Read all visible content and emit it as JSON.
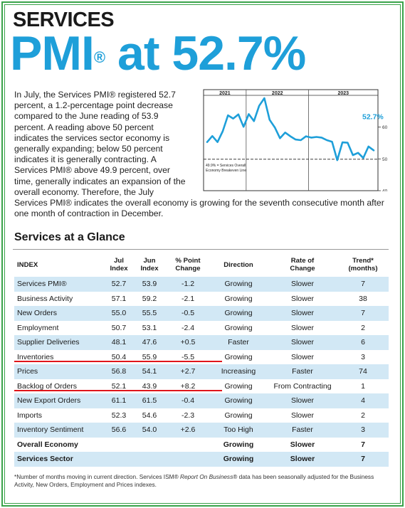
{
  "header": {
    "kicker": "SERVICES",
    "headline_pre": "PMI",
    "headline_reg": "®",
    "headline_post": " at 52.7%"
  },
  "intro": {
    "text": "In July, the Services PMI® registered 52.7 percent, a 1.2-percentage point decrease compared to the June reading of 53.9 percent. A reading above 50 percent indicates the services sector economy is generally expanding; below 50 percent indicates it is generally contracting. A Services PMI® above 49.9 percent, over time, generally indicates an expansion of the overall economy. Therefore, the July Services PMI® indicates the overall economy is growing for the seventh consecutive month after one month of contraction in December."
  },
  "chart_data": {
    "type": "line",
    "years": [
      "2021",
      "2022",
      "2023"
    ],
    "ylim": [
      40,
      70
    ],
    "yticks": [
      40,
      50,
      60
    ],
    "breakeven": 49.9,
    "breakeven_label_line1": "49.9% = Services Overall",
    "breakeven_label_line2": "Economy Breakeven Line",
    "last_value_label": "52.7%",
    "color": "#1e9fd9",
    "values": [
      55.3,
      57.2,
      55.3,
      58.7,
      63.7,
      62.7,
      64.0,
      60.1,
      64.1,
      61.9,
      66.7,
      69.1,
      62.3,
      59.9,
      56.5,
      58.3,
      57.1,
      56.1,
      55.9,
      57.1,
      56.7,
      56.9,
      56.7,
      55.9,
      55.4,
      49.6,
      55.2,
      55.1,
      51.2,
      51.9,
      50.3,
      53.9,
      52.7
    ]
  },
  "glance": {
    "title": "Services at a Glance",
    "headers": {
      "index": "INDEX",
      "jul_1": "Jul",
      "jul_2": "Index",
      "jun_1": "Jun",
      "jun_2": "Index",
      "chg_1": "% Point",
      "chg_2": "Change",
      "dir": "Direction",
      "rate_1": "Rate of",
      "rate_2": "Change",
      "trend_1": "Trend*",
      "trend_2": "(months)"
    },
    "rows": [
      {
        "name": "Services PMI®",
        "jul": "52.7",
        "jun": "53.9",
        "chg": "-1.2",
        "dir": "Growing",
        "rate": "Slower",
        "trend": "7"
      },
      {
        "name": "Business Activity",
        "jul": "57.1",
        "jun": "59.2",
        "chg": "-2.1",
        "dir": "Growing",
        "rate": "Slower",
        "trend": "38"
      },
      {
        "name": "New Orders",
        "jul": "55.0",
        "jun": "55.5",
        "chg": "-0.5",
        "dir": "Growing",
        "rate": "Slower",
        "trend": "7"
      },
      {
        "name": "Employment",
        "jul": "50.7",
        "jun": "53.1",
        "chg": "-2.4",
        "dir": "Growing",
        "rate": "Slower",
        "trend": "2"
      },
      {
        "name": "Supplier Deliveries",
        "jul": "48.1",
        "jun": "47.6",
        "chg": "+0.5",
        "dir": "Faster",
        "rate": "Slower",
        "trend": "6"
      },
      {
        "name": "Inventories",
        "jul": "50.4",
        "jun": "55.9",
        "chg": "-5.5",
        "dir": "Growing",
        "rate": "Slower",
        "trend": "3"
      },
      {
        "name": "Prices",
        "jul": "56.8",
        "jun": "54.1",
        "chg": "+2.7",
        "dir": "Increasing",
        "rate": "Faster",
        "trend": "74"
      },
      {
        "name": "Backlog of Orders",
        "jul": "52.1",
        "jun": "43.9",
        "chg": "+8.2",
        "dir": "Growing",
        "rate": "From Contracting",
        "trend": "1"
      },
      {
        "name": "New Export Orders",
        "jul": "61.1",
        "jun": "61.5",
        "chg": "-0.4",
        "dir": "Growing",
        "rate": "Slower",
        "trend": "4"
      },
      {
        "name": "Imports",
        "jul": "52.3",
        "jun": "54.6",
        "chg": "-2.3",
        "dir": "Growing",
        "rate": "Slower",
        "trend": "2"
      },
      {
        "name": "Inventory Sentiment",
        "jul": "56.6",
        "jun": "54.0",
        "chg": "+2.6",
        "dir": "Too High",
        "rate": "Faster",
        "trend": "3"
      },
      {
        "name": "Overall Economy",
        "jul": "",
        "jun": "",
        "chg": "",
        "dir": "Growing",
        "rate": "Slower",
        "trend": "7"
      },
      {
        "name": "Services Sector",
        "jul": "",
        "jun": "",
        "chg": "",
        "dir": "Growing",
        "rate": "Slower",
        "trend": "7"
      }
    ]
  },
  "footnote": {
    "pre": "*Number of months moving in current direction. Services ISM® ",
    "italic": "Report On Business",
    "post": "® data has been seasonally adjusted for the Business Activity, New Orders, Employment and Prices indexes."
  },
  "colors": {
    "accent": "#1e9fd9",
    "row_shade": "#d2e8f5",
    "border_green": "#3aa34a",
    "highlight_red": "#e0151b"
  }
}
